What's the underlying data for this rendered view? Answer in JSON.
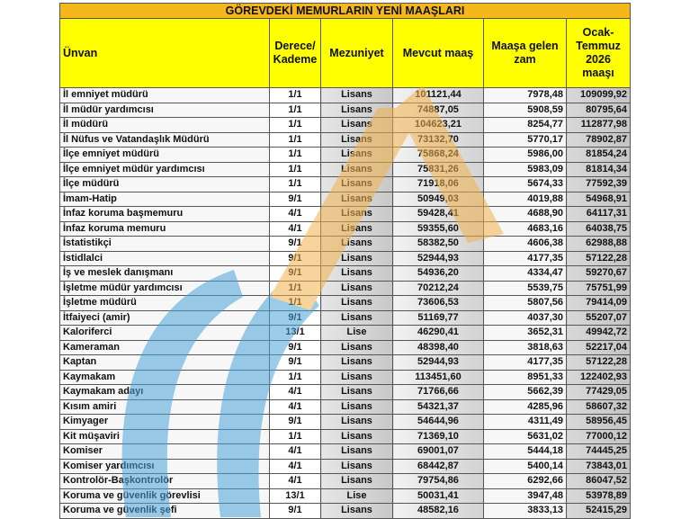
{
  "title": "GÖREVDEKİ MEMURLARIN YENİ MAAŞLARI",
  "headers": [
    "Ünvan",
    "Derece/ Kademe",
    "Mezuniyet",
    "Mevcut maaş",
    "Maaşa gelen zam",
    "Ocak- Temmuz 2026 maaşı"
  ],
  "colors": {
    "title_bg": "#f5b81a",
    "header_bg": "#ffff00",
    "watermark_blue": "#4aa3d8",
    "watermark_orange": "#f2b24a"
  },
  "rows": [
    [
      "İl emniyet müdürü",
      "1/1",
      "Lisans",
      "101121,44",
      "7978,48",
      "109099,92"
    ],
    [
      "İl müdür yardımcısı",
      "1/1",
      "Lisans",
      "74887,05",
      "5908,59",
      "80795,64"
    ],
    [
      "İl müdürü",
      "1/1",
      "Lisans",
      "104623,21",
      "8254,77",
      "112877,98"
    ],
    [
      "İl Nüfus ve Vatandaşlık Müdürü",
      "1/1",
      "Lisans",
      "73132,70",
      "5770,17",
      "78902,87"
    ],
    [
      "İlçe emniyet müdürü",
      "1/1",
      "Lisans",
      "75868,24",
      "5986,00",
      "81854,24"
    ],
    [
      "İlçe emniyet müdür yardımcısı",
      "1/1",
      "Lisans",
      "75831,26",
      "5983,09",
      "81814,34"
    ],
    [
      "İlçe müdürü",
      "1/1",
      "Lisans",
      "71918,06",
      "5674,33",
      "77592,39"
    ],
    [
      "İmam-Hatip",
      "9/1",
      "Lisans",
      "50949,03",
      "4019,88",
      "54968,91"
    ],
    [
      "İnfaz koruma başmemuru",
      "4/1",
      "Lisans",
      "59428,41",
      "4688,90",
      "64117,31"
    ],
    [
      "İnfaz koruma memuru",
      "4/1",
      "Lisans",
      "59355,60",
      "4683,16",
      "64038,75"
    ],
    [
      "İstatistikçi",
      "9/1",
      "Lisans",
      "58382,50",
      "4606,38",
      "62988,88"
    ],
    [
      "İstidlalci",
      "9/1",
      "Lisans",
      "52944,93",
      "4177,35",
      "57122,28"
    ],
    [
      "İş ve meslek danışmanı",
      "9/1",
      "Lisans",
      "54936,20",
      "4334,47",
      "59270,67"
    ],
    [
      "İşletme müdür yardımcısı",
      "1/1",
      "Lisans",
      "70212,24",
      "5539,75",
      "75751,99"
    ],
    [
      "İşletme müdürü",
      "1/1",
      "Lisans",
      "73606,53",
      "5807,56",
      "79414,09"
    ],
    [
      "İtfaiyeci (amir)",
      "9/1",
      "Lisans",
      "51169,77",
      "4037,30",
      "55207,07"
    ],
    [
      "Kaloriferci",
      "13/1",
      "Lise",
      "46290,41",
      "3652,31",
      "49942,72"
    ],
    [
      "Kameraman",
      "9/1",
      "Lisans",
      "48398,40",
      "3818,63",
      "52217,04"
    ],
    [
      "Kaptan",
      "9/1",
      "Lisans",
      "52944,93",
      "4177,35",
      "57122,28"
    ],
    [
      "Kaymakam",
      "1/1",
      "Lisans",
      "113451,60",
      "8951,33",
      "122402,93"
    ],
    [
      "Kaymakam adayı",
      "4/1",
      "Lisans",
      "71766,66",
      "5662,39",
      "77429,05"
    ],
    [
      "Kısım amiri",
      "4/1",
      "Lisans",
      "54321,37",
      "4285,96",
      "58607,32"
    ],
    [
      "Kimyager",
      "9/1",
      "Lisans",
      "54644,96",
      "4311,49",
      "58956,45"
    ],
    [
      "Kit müşaviri",
      "1/1",
      "Lisans",
      "71369,10",
      "5631,02",
      "77000,12"
    ],
    [
      "Komiser",
      "4/1",
      "Lisans",
      "69001,07",
      "5444,18",
      "74445,25"
    ],
    [
      "Komiser yardımcısı",
      "4/1",
      "Lisans",
      "68442,87",
      "5400,14",
      "73843,01"
    ],
    [
      "Kontrolör-Başkontrolör",
      "4/1",
      "Lisans",
      "79754,86",
      "6292,66",
      "86047,52"
    ],
    [
      "Koruma ve güvenlik görevlisi",
      "13/1",
      "Lise",
      "50031,41",
      "3947,48",
      "53978,89"
    ],
    [
      "Koruma ve güvenlik şefi",
      "9/1",
      "Lisans",
      "48582,16",
      "3833,13",
      "52415,29"
    ]
  ]
}
